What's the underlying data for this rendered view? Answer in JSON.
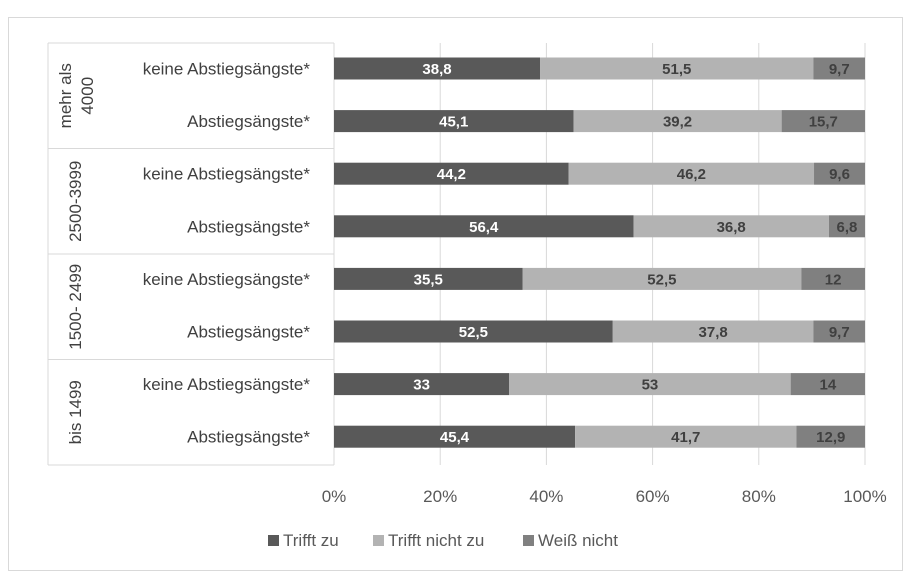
{
  "chart_data": {
    "type": "bar",
    "orientation": "horizontal",
    "stacked": "percent",
    "xlim": [
      0,
      100
    ],
    "x_ticks": [
      "0%",
      "20%",
      "40%",
      "60%",
      "80%",
      "100%"
    ],
    "grid": true,
    "legend_position": "bottom",
    "colors": [
      "#595959",
      "#b3b3b3",
      "#808080"
    ],
    "label_colors": [
      "#ffffff",
      "#404040",
      "#404040"
    ],
    "groups": [
      {
        "label_lines": [
          "mehr als",
          "4000"
        ],
        "categories": [
          "keine Abstiegsängste*",
          "Abstiegsängste*"
        ]
      },
      {
        "label_lines": [
          "2500-3999"
        ],
        "categories": [
          "keine Abstiegsängste*",
          "Abstiegsängste*"
        ]
      },
      {
        "label_lines": [
          "1500- 2499"
        ],
        "categories": [
          "keine Abstiegsängste*",
          "Abstiegsängste*"
        ]
      },
      {
        "label_lines": [
          "bis 1499"
        ],
        "categories": [
          "keine Abstiegsängste*",
          "Abstiegsängste*"
        ]
      }
    ],
    "series": [
      {
        "name": "Trifft zu",
        "values": [
          38.8,
          45.1,
          44.2,
          56.4,
          35.5,
          52.5,
          33,
          45.4
        ],
        "labels": [
          "38,8",
          "45,1",
          "44,2",
          "56,4",
          "35,5",
          "52,5",
          "33",
          "45,4"
        ]
      },
      {
        "name": "Trifft nicht zu",
        "values": [
          51.5,
          39.2,
          46.2,
          36.8,
          52.5,
          37.8,
          53,
          41.7
        ],
        "labels": [
          "51,5",
          "39,2",
          "46,2",
          "36,8",
          "52,5",
          "37,8",
          "53",
          "41,7"
        ]
      },
      {
        "name": "Weiß nicht",
        "values": [
          9.7,
          15.7,
          9.6,
          6.8,
          12,
          9.7,
          14,
          12.9
        ],
        "labels": [
          "9,7",
          "15,7",
          "9,6",
          "6,8",
          "12",
          "9,7",
          "14",
          "12,9"
        ]
      }
    ]
  }
}
